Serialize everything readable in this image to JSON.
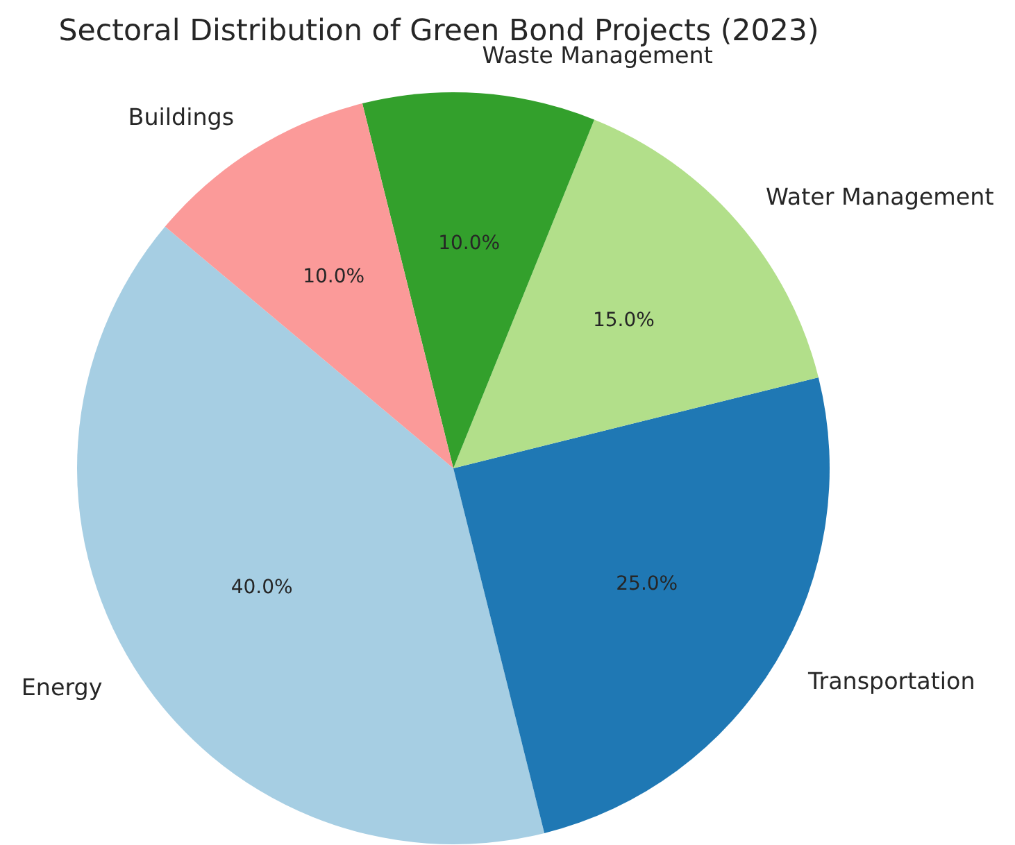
{
  "chart_data": {
    "type": "pie",
    "title": "Sectoral Distribution of Green Bond Projects (2023)",
    "categories": [
      "Energy",
      "Transportation",
      "Water Management",
      "Waste Management",
      "Buildings"
    ],
    "values": [
      40,
      25,
      15,
      10,
      10
    ],
    "value_labels": [
      "40.0%",
      "25.0%",
      "15.0%",
      "10.0%",
      "10.0%"
    ],
    "colors": [
      "#a6cee3",
      "#1f78b4",
      "#b2df8a",
      "#33a02c",
      "#fb9a99"
    ]
  }
}
